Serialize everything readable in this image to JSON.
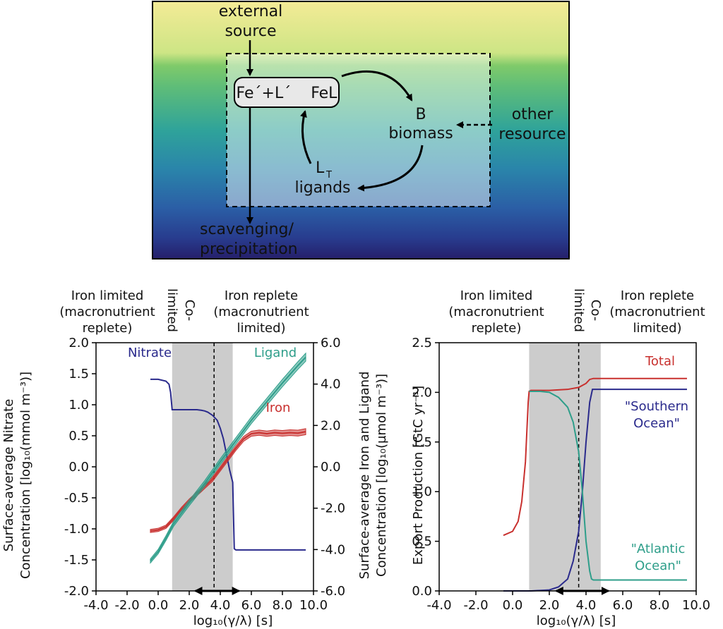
{
  "diagram": {
    "external_source": [
      "external",
      "source"
    ],
    "pool": "Fe´+L´    FeL",
    "biomass": [
      "B",
      "biomass"
    ],
    "ligands": [
      "L",
      "T",
      "ligands"
    ],
    "other_resource": [
      "other",
      "resource"
    ],
    "scavenging": [
      "scavenging/",
      "precipitation"
    ]
  },
  "regions": {
    "left": [
      "Iron limited",
      "(macronutrient",
      "replete)"
    ],
    "co": [
      "Co-",
      "limited"
    ],
    "right": [
      "Iron replete",
      "(macronutrient",
      "limited)"
    ]
  },
  "colors": {
    "nitrate": "#2a2a8c",
    "iron": "#c8302e",
    "ligand": "#2e9e8a",
    "total": "#c8302e",
    "southern": "#2a2a8c",
    "atlantic": "#2e9e8a",
    "shade": "#cccccc"
  },
  "chart_data": [
    {
      "type": "line",
      "xlabel": "log₁₀(γ/λ) [s]",
      "ylabel": [
        "Surface-average Nitrate",
        "Concentration [log₁₀(mmol m⁻³)]"
      ],
      "y2label": [
        "Surface-average Iron and Ligand",
        "Concentration [log₁₀(µmol m⁻³)]"
      ],
      "xlim": [
        -4.0,
        10.0
      ],
      "ylim": [
        -2.0,
        2.0
      ],
      "y2lim": [
        -6.0,
        6.0
      ],
      "xticks": [
        "-4.0",
        "-2.0",
        "0.0",
        "2.0",
        "4.0",
        "6.0",
        "8.0",
        "10.0"
      ],
      "yticks": [
        "-2.0",
        "-1.5",
        "-1.0",
        "-0.5",
        "0.0",
        "0.5",
        "1.0",
        "1.5",
        "2.0"
      ],
      "y2ticks": [
        "-6.0",
        "-4.0",
        "-2.0",
        "0.0",
        "2.0",
        "4.0",
        "6.0"
      ],
      "shaded_x": [
        0.9,
        4.8
      ],
      "dashed_x": 3.6,
      "arrow_x": [
        2.3,
        5.3
      ],
      "series": [
        {
          "name": "Nitrate",
          "axis": "left",
          "color_key": "nitrate",
          "x": [
            -0.5,
            0.0,
            0.5,
            0.7,
            0.8,
            0.9,
            1.5,
            2.0,
            2.5,
            2.8,
            3.0,
            3.2,
            3.5,
            3.8,
            4.0,
            4.2,
            4.4,
            4.6,
            4.8,
            4.9,
            5.0,
            9.5
          ],
          "y": [
            1.41,
            1.41,
            1.38,
            1.33,
            1.2,
            0.92,
            0.92,
            0.92,
            0.92,
            0.91,
            0.9,
            0.88,
            0.83,
            0.75,
            0.62,
            0.45,
            0.2,
            -0.05,
            -0.25,
            -1.32,
            -1.34,
            -1.34
          ]
        },
        {
          "name": "Iron",
          "axis": "right",
          "color_key": "iron",
          "x": [
            -0.5,
            0.0,
            0.5,
            1.0,
            1.5,
            2.0,
            2.5,
            3.0,
            3.5,
            4.0,
            4.5,
            5.0,
            5.5,
            6.0,
            6.5,
            7.0,
            7.5,
            8.0,
            8.5,
            9.0,
            9.5
          ],
          "y": [
            -3.1,
            -3.05,
            -2.9,
            -2.5,
            -2.05,
            -1.65,
            -1.3,
            -0.95,
            -0.6,
            -0.1,
            0.4,
            0.9,
            1.35,
            1.6,
            1.65,
            1.6,
            1.65,
            1.62,
            1.65,
            1.63,
            1.7
          ],
          "band": 0.15
        },
        {
          "name": "Ligand",
          "axis": "right",
          "color_key": "ligand",
          "x": [
            -0.5,
            0.0,
            0.5,
            1.0,
            2.0,
            3.0,
            4.0,
            5.0,
            6.0,
            7.0,
            8.0,
            9.0,
            9.5
          ],
          "y": [
            -4.55,
            -4.1,
            -3.45,
            -2.75,
            -1.75,
            -0.8,
            0.25,
            1.25,
            2.25,
            3.15,
            4.05,
            4.9,
            5.3
          ],
          "band": 0.2
        }
      ]
    },
    {
      "type": "line",
      "xlabel": "log₁₀(γ/λ) [s]",
      "ylabel": [
        "Export Production [GtC yr⁻¹]"
      ],
      "xlim": [
        -4.0,
        10.0
      ],
      "ylim": [
        0.0,
        2.5
      ],
      "xticks": [
        "-4.0",
        "-2.0",
        "0.0",
        "2.0",
        "4.0",
        "6.0",
        "8.0",
        "10.0"
      ],
      "yticks": [
        "0.0",
        "0.5",
        "1.0",
        "1.5",
        "2.0",
        "2.5"
      ],
      "shaded_x": [
        0.9,
        4.8
      ],
      "dashed_x": 3.6,
      "arrow_x": [
        2.3,
        5.3
      ],
      "series": [
        {
          "name": "Total",
          "color_key": "total",
          "x": [
            -0.5,
            0.0,
            0.3,
            0.5,
            0.7,
            0.85,
            0.9,
            1.0,
            2.0,
            3.0,
            3.6,
            4.0,
            4.2,
            4.4,
            9.5
          ],
          "y": [
            0.56,
            0.6,
            0.7,
            0.9,
            1.3,
            1.9,
            2.01,
            2.02,
            2.02,
            2.03,
            2.05,
            2.09,
            2.13,
            2.14,
            2.14
          ]
        },
        {
          "name": "\"Southern Ocean\"",
          "color_key": "southern",
          "x": [
            -0.5,
            1.0,
            2.0,
            2.5,
            3.0,
            3.3,
            3.6,
            3.8,
            4.0,
            4.2,
            4.35,
            4.5,
            9.5
          ],
          "y": [
            0.0,
            0.0,
            0.01,
            0.04,
            0.12,
            0.3,
            0.6,
            1.0,
            1.5,
            1.9,
            2.03,
            2.03,
            2.03
          ]
        },
        {
          "name": "\"Atlantic Ocean\"",
          "color_key": "atlantic",
          "x": [
            0.9,
            1.5,
            2.0,
            2.5,
            3.0,
            3.3,
            3.6,
            3.8,
            4.0,
            4.2,
            4.3,
            4.4,
            9.5
          ],
          "y": [
            2.01,
            2.01,
            2.0,
            1.95,
            1.85,
            1.7,
            1.4,
            1.0,
            0.5,
            0.2,
            0.12,
            0.11,
            0.11
          ]
        }
      ]
    }
  ]
}
